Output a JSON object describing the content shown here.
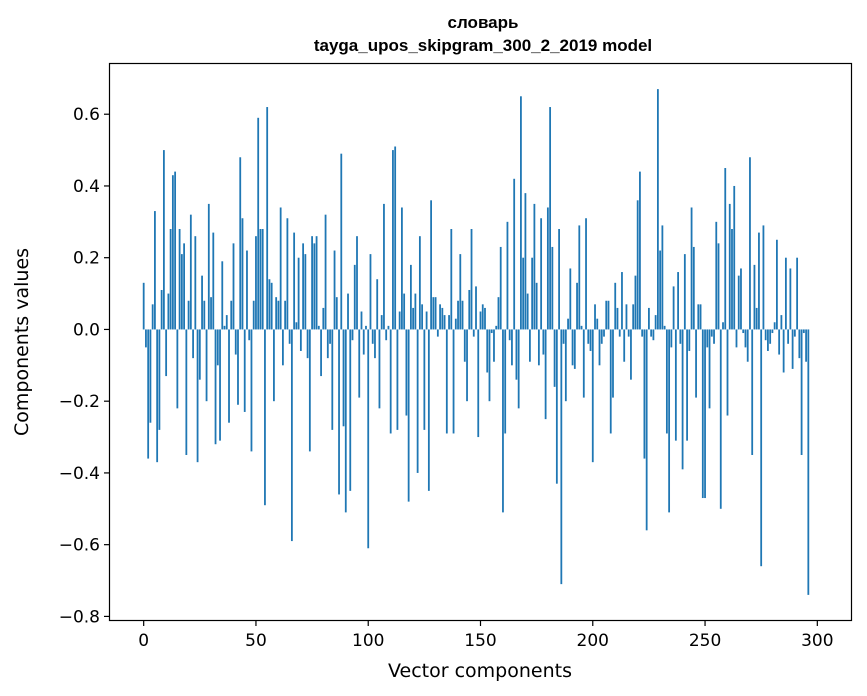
{
  "chart_data": {
    "type": "bar",
    "title": "словарь",
    "subtitle": "tayga_upos_skipgram_300_2_2019 model",
    "xlabel": "Vector components",
    "ylabel": "Components values",
    "xlim": [
      -15,
      315
    ],
    "ylim": [
      -0.81,
      0.74
    ],
    "xticks": [
      0,
      50,
      100,
      150,
      200,
      250,
      300
    ],
    "yticks": [
      -0.8,
      -0.6,
      -0.4,
      -0.2,
      0.0,
      0.2,
      0.4,
      0.6
    ],
    "ytick_labels": [
      "−0.8",
      "−0.6",
      "−0.4",
      "−0.2",
      "0.0",
      "0.2",
      "0.4",
      "0.6"
    ],
    "bar_color": "#1f77b4",
    "x": "0..299",
    "values": [
      0.13,
      -0.05,
      -0.36,
      -0.26,
      0.07,
      0.33,
      -0.37,
      -0.28,
      0.11,
      0.5,
      -0.13,
      0.1,
      0.28,
      0.43,
      0.44,
      -0.22,
      0.28,
      0.21,
      0.24,
      -0.35,
      0.08,
      0.32,
      -0.08,
      0.26,
      -0.37,
      -0.14,
      0.15,
      0.08,
      -0.2,
      0.35,
      0.09,
      0.27,
      -0.32,
      -0.1,
      -0.31,
      0.19,
      0.01,
      0.04,
      -0.26,
      0.08,
      0.24,
      -0.07,
      -0.21,
      0.48,
      0.31,
      -0.23,
      0.22,
      -0.03,
      -0.34,
      0.08,
      0.26,
      0.59,
      0.28,
      0.28,
      -0.49,
      0.62,
      0.14,
      0.13,
      -0.2,
      0.09,
      0.08,
      0.34,
      -0.1,
      0.08,
      0.31,
      -0.04,
      -0.59,
      0.27,
      0.02,
      0.2,
      -0.06,
      0.24,
      0.21,
      -0.08,
      -0.34,
      0.26,
      0.24,
      0.26,
      0.01,
      -0.13,
      0.06,
      0.32,
      -0.08,
      -0.04,
      -0.28,
      0.22,
      0.09,
      -0.46,
      0.49,
      -0.27,
      -0.51,
      0.1,
      -0.45,
      -0.03,
      0.18,
      0.26,
      -0.19,
      0.05,
      -0.07,
      0.01,
      -0.61,
      0.21,
      -0.04,
      -0.08,
      0.14,
      -0.22,
      0.04,
      0.35,
      -0.03,
      0.01,
      -0.29,
      0.5,
      0.51,
      -0.28,
      0.05,
      0.34,
      0.1,
      -0.24,
      -0.48,
      0.18,
      0.06,
      0.1,
      -0.4,
      0.26,
      0.07,
      -0.28,
      0.05,
      -0.45,
      0.36,
      0.09,
      0.09,
      -0.02,
      0.07,
      0.06,
      0.04,
      -0.29,
      0.04,
      0.28,
      -0.29,
      0.03,
      0.08,
      0.21,
      0.08,
      -0.09,
      -0.2,
      0.11,
      0.28,
      -0.02,
      0.12,
      -0.3,
      0.05,
      0.07,
      0.06,
      -0.12,
      -0.2,
      -0.01,
      -0.09,
      0.01,
      0.09,
      0.23,
      -0.51,
      -0.29,
      0.3,
      -0.03,
      -0.1,
      0.42,
      -0.14,
      -0.22,
      0.65,
      0.2,
      0.38,
      0.1,
      -0.09,
      0.2,
      0.35,
      0.13,
      -0.1,
      0.31,
      -0.07,
      -0.25,
      0.34,
      0.62,
      0.23,
      -0.16,
      -0.43,
      0.28,
      -0.71,
      -0.04,
      -0.2,
      0.03,
      0.17,
      -0.1,
      -0.11,
      0.13,
      0.29,
      0.01,
      -0.19,
      0.31,
      -0.04,
      -0.06,
      -0.37,
      0.07,
      0.03,
      -0.1,
      -0.04,
      -0.02,
      0.08,
      0.08,
      -0.29,
      -0.19,
      0.13,
      0.06,
      -0.02,
      0.16,
      -0.09,
      0.07,
      -0.02,
      -0.14,
      0.07,
      0.15,
      0.36,
      0.44,
      -0.02,
      -0.36,
      -0.56,
      0.06,
      -0.02,
      -0.03,
      0.04,
      0.67,
      0.22,
      0.29,
      0.01,
      -0.29,
      -0.51,
      -0.05,
      0.12,
      -0.31,
      0.16,
      -0.04,
      -0.39,
      0.21,
      -0.31,
      -0.06,
      0.34,
      0.23,
      -0.19,
      0.07,
      0.07,
      -0.47,
      -0.47,
      -0.05,
      -0.22,
      -0.02,
      -0.04,
      0.3,
      0.24,
      -0.5,
      0.02,
      0.45,
      -0.24,
      0.35,
      0.28,
      0.4,
      -0.05,
      0.15,
      0.17,
      -0.01,
      -0.05,
      -0.09,
      0.48,
      -0.35,
      0.18,
      0.06,
      0.27,
      -0.66,
      0.29,
      -0.03,
      -0.06,
      -0.04,
      -0.01,
      0.02,
      0.25,
      -0.07,
      0.04,
      -0.12,
      0.2,
      -0.04,
      0.17,
      -0.11,
      -0.02,
      0.2,
      -0.08,
      -0.35,
      -0.01,
      -0.09,
      -0.74
    ]
  }
}
